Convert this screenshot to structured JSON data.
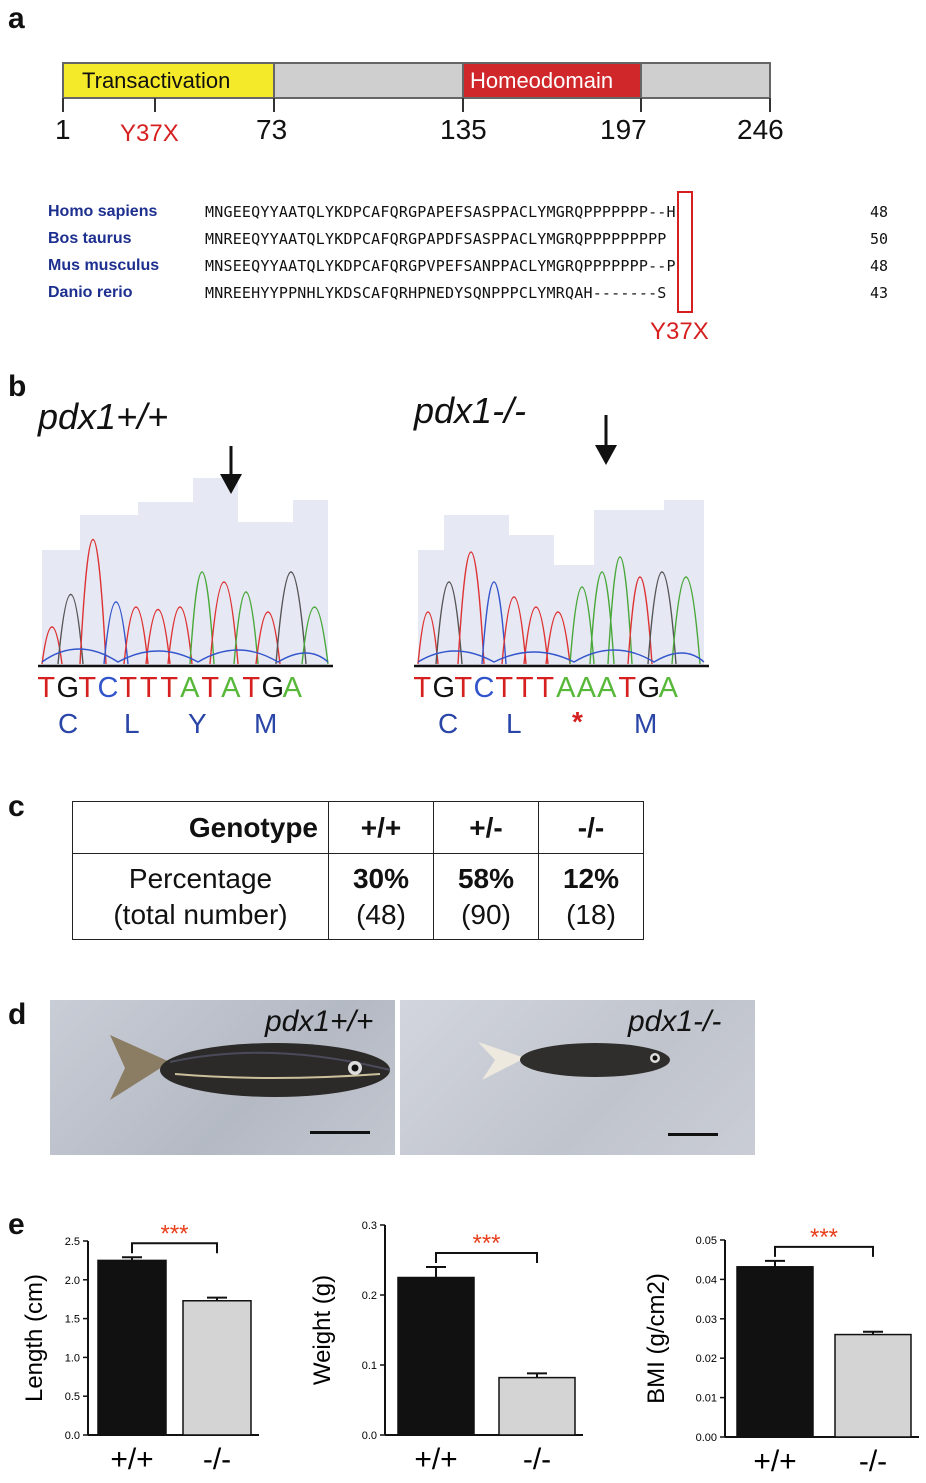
{
  "panels": {
    "a": "a",
    "b": "b",
    "c": "c",
    "d": "d",
    "e": "e"
  },
  "domain_bar": {
    "transactivation": "Transactivation",
    "homeodomain": "Homeodomain",
    "ticks": [
      "1",
      "73",
      "135",
      "197",
      "246"
    ],
    "mutation": "Y37X"
  },
  "alignment": {
    "rows": [
      {
        "species": "Homo sapiens",
        "seq": "MNGEEQYYAATQLYKDPCAFQRGPAPEFSASPPACLYMGRQPPPPPPP--H",
        "num": "48"
      },
      {
        "species": "Bos taurus",
        "seq": "MNREEQYYAATQLYKDPCAFQRGPAPDFSASPPACLYMGRQPPPPPPPPP",
        "num": "50"
      },
      {
        "species": "Mus musculus",
        "seq": "MNSEEQYYAATQLYKDPCAFQRGPVPEFSANPPACLYMGRQPPPPPPP--P",
        "num": "48"
      },
      {
        "species": "Danio rerio",
        "seq": "MNREEHYYPPNHLYKDSCAFQRHPNEDYSQNPPPCLYMRQAH-------S",
        "num": "43"
      }
    ],
    "mutation_label": "Y37X"
  },
  "chromatograms": {
    "wt": {
      "title": "pdx1+/+",
      "bases": [
        "T",
        "G",
        "T",
        "C",
        "T",
        "T",
        "T",
        "A",
        "T",
        "A",
        "T",
        "G",
        "A"
      ],
      "aa": [
        "C",
        "L",
        "Y",
        "M"
      ]
    },
    "ko": {
      "title": "pdx1-/-",
      "bases": [
        "T",
        "G",
        "T",
        "C",
        "T",
        "T",
        "T",
        "A",
        "A",
        "A",
        "T",
        "G",
        "A"
      ],
      "aa": [
        "C",
        "L",
        "*",
        "M"
      ]
    }
  },
  "genotype_table": {
    "headers": [
      "Genotype",
      "+/+",
      "+/-",
      "-/-"
    ],
    "row_label_1": "Percentage",
    "row_label_2": "(total number)",
    "percent": [
      "30%",
      "58%",
      "12%"
    ],
    "counts": [
      "(48)",
      "(90)",
      "(18)"
    ]
  },
  "photos": {
    "wt_label": "pdx1+/+",
    "ko_label": "pdx1-/-"
  },
  "chart_data": [
    {
      "type": "bar",
      "categories": [
        "+/+",
        "-/-"
      ],
      "values": [
        2.25,
        1.73
      ],
      "errors": [
        0.04,
        0.04
      ],
      "ylabel": "Length (cm)",
      "ylim": [
        0,
        2.5
      ],
      "yticks": [
        "0.0",
        "0.5",
        "1.0",
        "1.5",
        "2.0",
        "2.5"
      ],
      "significance": "***",
      "colors": [
        "#111111",
        "#d4d4d4"
      ]
    },
    {
      "type": "bar",
      "categories": [
        "+/+",
        "-/-"
      ],
      "values": [
        0.225,
        0.082
      ],
      "errors": [
        0.015,
        0.006
      ],
      "ylabel": "Weight (g)",
      "ylim": [
        0,
        0.3
      ],
      "yticks": [
        "0.0",
        "0.1",
        "0.2",
        "0.3"
      ],
      "significance": "***",
      "colors": [
        "#111111",
        "#d4d4d4"
      ]
    },
    {
      "type": "bar",
      "categories": [
        "+/+",
        "-/-"
      ],
      "values": [
        0.0432,
        0.026
      ],
      "errors": [
        0.0015,
        0.0007
      ],
      "ylabel": "BMI (g/cm2)",
      "ylim": [
        0,
        0.05
      ],
      "yticks": [
        "0.00",
        "0.01",
        "0.02",
        "0.03",
        "0.04",
        "0.05"
      ],
      "significance": "***",
      "colors": [
        "#111111",
        "#d4d4d4"
      ]
    }
  ]
}
